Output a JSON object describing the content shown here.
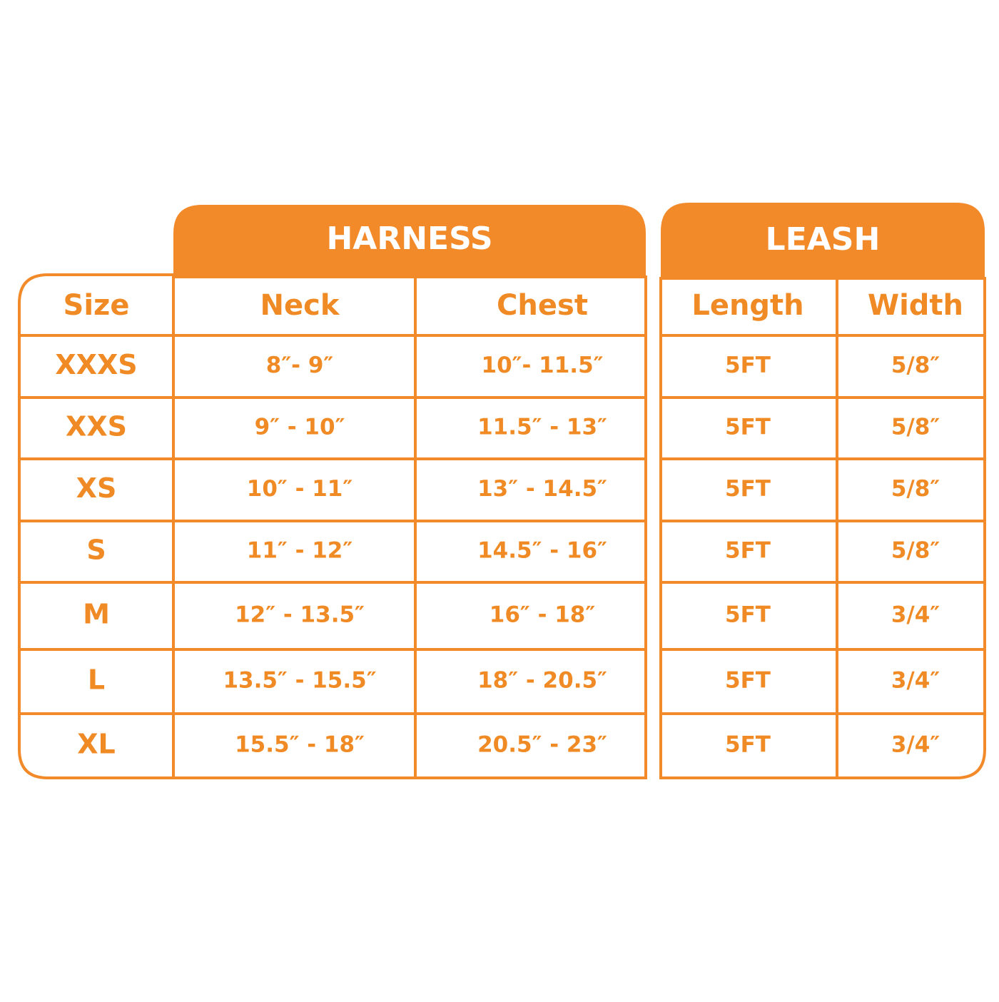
{
  "table": {
    "group_titles": [
      "HARNESS",
      "LEASH"
    ],
    "header": [
      "Size",
      "Neck",
      "Chest",
      "Length",
      "Width"
    ],
    "rows": [
      [
        "XXXS",
        "8″- 9″",
        "10″- 11.5″",
        "5FT",
        "5/8″"
      ],
      [
        "XXS",
        "9″ - 10″",
        "11.5″ - 13″",
        "5FT",
        "5/8″"
      ],
      [
        "XS",
        "10″ - 11″",
        "13″ - 14.5″",
        "5FT",
        "5/8″"
      ],
      [
        "S",
        "11″ - 12″",
        "14.5″ - 16″",
        "5FT",
        "5/8″"
      ],
      [
        "M",
        "12″ - 13.5″",
        "16″ - 18″",
        "5FT",
        "3/4″"
      ],
      [
        "L",
        "13.5″ - 15.5″",
        "18″ - 20.5″",
        "5FT",
        "3/4″"
      ],
      [
        "XL",
        "15.5″ - 18″",
        "20.5″ - 23″",
        "5FT",
        "3/4″"
      ]
    ]
  }
}
